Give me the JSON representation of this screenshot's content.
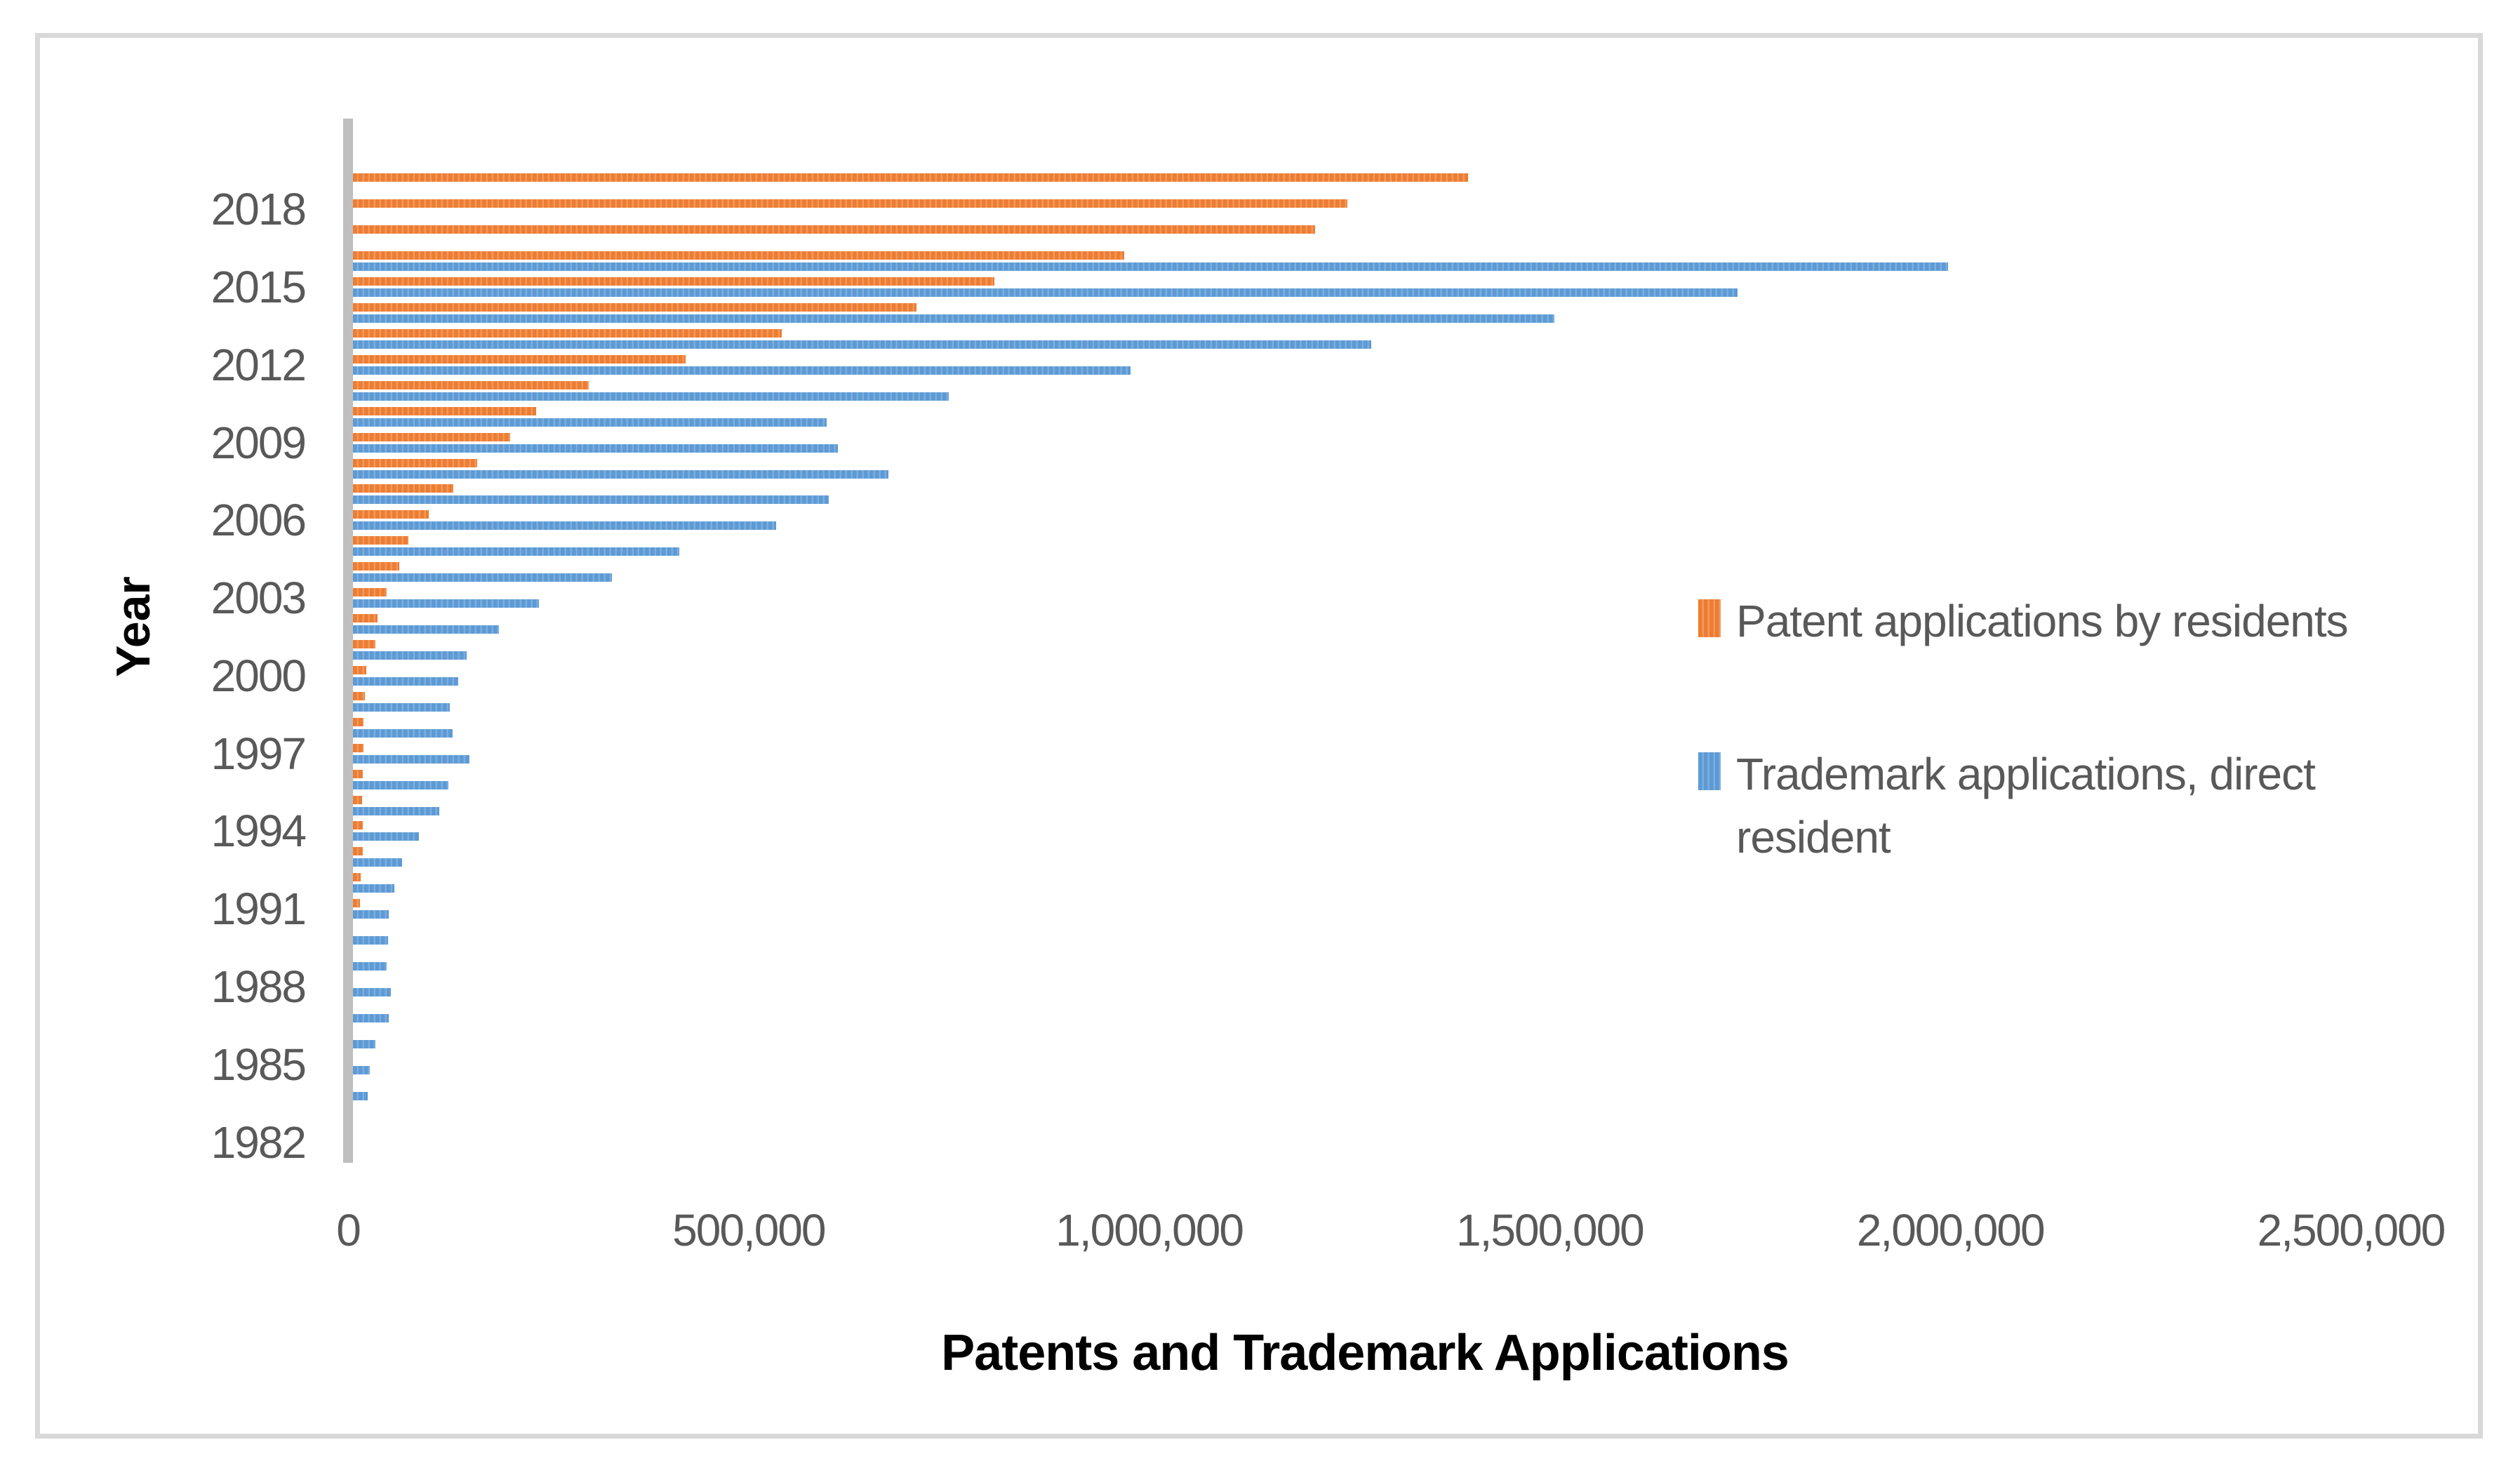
{
  "chart_data": {
    "type": "bar",
    "orientation": "horizontal",
    "title": "",
    "xlabel": "Patents and Trademark Applications",
    "ylabel": "Year",
    "xlim": [
      0,
      2500000
    ],
    "grid": false,
    "legend_position": "middle-right",
    "x_tick_labels": [
      "0",
      "500,000",
      "1,000,000",
      "1,500,000",
      "2,000,000",
      "2,500,000"
    ],
    "x_tick_values": [
      0,
      500000,
      1000000,
      1500000,
      2000000,
      2500000
    ],
    "y_tick_labels": [
      "2018",
      "2015",
      "2012",
      "2009",
      "2006",
      "2003",
      "2000",
      "1997",
      "1994",
      "1991",
      "1988",
      "1985",
      "1982"
    ],
    "categories": [
      "2019",
      "2018",
      "2017",
      "2016",
      "2015",
      "2014",
      "2013",
      "2012",
      "2011",
      "2010",
      "2009",
      "2008",
      "2007",
      "2006",
      "2005",
      "2004",
      "2003",
      "2002",
      "2001",
      "2000",
      "1999",
      "1998",
      "1997",
      "1996",
      "1995",
      "1994",
      "1993",
      "1992",
      "1991",
      "1990",
      "1989",
      "1988",
      "1987",
      "1986",
      "1985",
      "1984",
      "1983",
      "1982"
    ],
    "series": [
      {
        "key": "patent",
        "name": "Patent applications by residents",
        "color": "#ED7D31",
        "color_light": "#F2985E",
        "values": [
          1392000,
          1241000,
          1201000,
          963000,
          801000,
          703000,
          535000,
          415000,
          294000,
          229000,
          196000,
          155000,
          125000,
          95000,
          69000,
          58000,
          42000,
          31000,
          28000,
          17000,
          15000,
          13000,
          13000,
          12000,
          11000,
          12000,
          12000,
          10000,
          9000,
          null,
          null,
          null,
          null,
          null,
          null,
          null,
          null,
          null
        ]
      },
      {
        "key": "trademark",
        "name": "Trademark applications, direct resident",
        "color": "#5B9BD5",
        "color_light": "#7FACDE",
        "values": [
          null,
          null,
          null,
          1991000,
          1728000,
          1500000,
          1271000,
          971000,
          744000,
          591000,
          605000,
          668000,
          594000,
          528000,
          407000,
          323000,
          232000,
          182000,
          142000,
          131000,
          121000,
          124000,
          145000,
          119000,
          108000,
          82000,
          61000,
          52000,
          45000,
          44000,
          42000,
          47000,
          45000,
          28000,
          21000,
          18000,
          null,
          null
        ]
      }
    ]
  },
  "colors": {
    "axis_line": "#BFBFBF",
    "tick_text": "#595959",
    "border": "#D9D9D9",
    "title_text": "#000000",
    "background": "#FFFFFF"
  },
  "legend": {
    "patent_label": "Patent applications by residents",
    "trademark_label": "Trademark applications, direct resident"
  }
}
